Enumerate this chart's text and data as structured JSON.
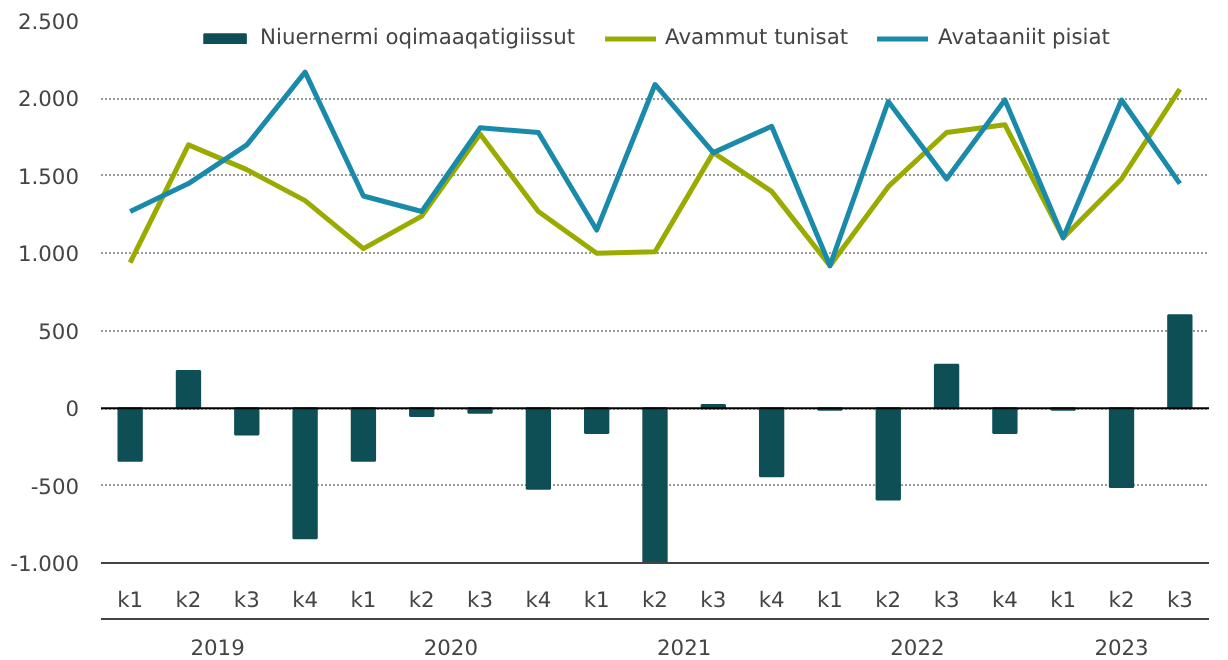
{
  "chart_data": {
    "type": "bar",
    "categories": [
      "k1",
      "k2",
      "k3",
      "k4",
      "k1",
      "k2",
      "k3",
      "k4",
      "k1",
      "k2",
      "k3",
      "k4",
      "k1",
      "k2",
      "k3",
      "k4",
      "k1",
      "k2",
      "k3"
    ],
    "series": [
      {
        "name": "Niuernermi oqimaaqatigiissut",
        "color": "#0d4f55",
        "values": [
          -340,
          240,
          -170,
          -840,
          -340,
          -50,
          -30,
          -520,
          -160,
          -1000,
          20,
          -440,
          -10,
          -590,
          280,
          -160,
          -10,
          -510,
          600
        ]
      },
      {
        "name": "Avammut tunisat",
        "color": "#9aab00",
        "type": "line",
        "values": [
          940,
          1700,
          1540,
          1340,
          1030,
          1240,
          1770,
          1270,
          1000,
          1010,
          1650,
          1400,
          920,
          1430,
          1780,
          1830,
          1100,
          1480,
          2060
        ]
      },
      {
        "name": "Avataaniit pisiat",
        "color": "#1a8aab",
        "type": "line",
        "values": [
          1270,
          1450,
          1700,
          2170,
          1370,
          1270,
          1810,
          1780,
          1150,
          2090,
          1650,
          1820,
          920,
          1980,
          1480,
          1990,
          1100,
          1990,
          1450
        ]
      }
    ],
    "ylim": [
      -1000,
      2500
    ],
    "yticks": [
      {
        "value": -1000,
        "label": "-1.000"
      },
      {
        "value": -500,
        "label": "-500"
      },
      {
        "value": 0,
        "label": "0"
      },
      {
        "value": 500,
        "label": "500"
      },
      {
        "value": 1000,
        "label": "1.000"
      },
      {
        "value": 1500,
        "label": "1.500"
      },
      {
        "value": 2000,
        "label": "2.000"
      },
      {
        "value": 2500,
        "label": "2.500"
      }
    ],
    "grid": "y",
    "legend": "top",
    "marker": "none",
    "line_style": "solid",
    "annotations": [
      "2019",
      "2020",
      "2021",
      "2022",
      "2023"
    ]
  }
}
